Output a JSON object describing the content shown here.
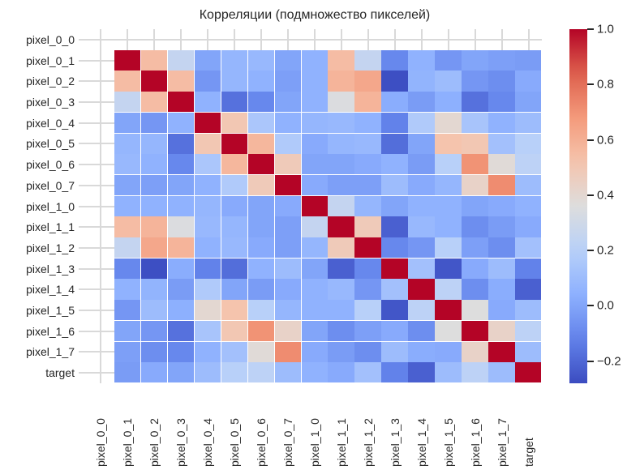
{
  "chart_data": {
    "type": "heatmap",
    "title": "Корреляции (подмножество пикселей)",
    "xlabel": "",
    "ylabel": "",
    "colormap": "coolwarm",
    "vmin": -0.28,
    "vmax": 1.0,
    "labels": [
      "pixel_0_0",
      "pixel_0_1",
      "pixel_0_2",
      "pixel_0_3",
      "pixel_0_4",
      "pixel_0_5",
      "pixel_0_6",
      "pixel_0_7",
      "pixel_1_0",
      "pixel_1_1",
      "pixel_1_2",
      "pixel_1_3",
      "pixel_1_4",
      "pixel_1_5",
      "pixel_1_6",
      "pixel_1_7",
      "target"
    ],
    "matrix": [
      [
        null,
        null,
        null,
        null,
        null,
        null,
        null,
        null,
        null,
        null,
        null,
        null,
        null,
        null,
        null,
        null,
        null
      ],
      [
        null,
        1.0,
        0.55,
        0.25,
        0.0,
        0.07,
        0.08,
        0.0,
        0.05,
        0.55,
        0.25,
        -0.1,
        0.05,
        -0.05,
        0.0,
        -0.02,
        -0.03
      ],
      [
        null,
        0.55,
        1.0,
        0.55,
        -0.05,
        0.07,
        0.05,
        -0.02,
        0.05,
        0.58,
        0.63,
        -0.27,
        0.06,
        0.1,
        -0.05,
        -0.08,
        0.02
      ],
      [
        null,
        0.25,
        0.55,
        1.0,
        0.05,
        -0.17,
        -0.1,
        0.0,
        0.05,
        0.35,
        0.58,
        0.03,
        -0.03,
        0.04,
        -0.17,
        -0.1,
        0.0
      ],
      [
        null,
        0.0,
        -0.05,
        0.05,
        1.0,
        0.5,
        0.15,
        0.05,
        0.07,
        0.08,
        0.05,
        -0.12,
        0.17,
        0.4,
        0.14,
        0.05,
        0.1
      ],
      [
        null,
        0.07,
        0.07,
        -0.17,
        0.5,
        1.0,
        0.57,
        0.17,
        0.02,
        0.07,
        0.08,
        -0.18,
        0.0,
        0.52,
        0.5,
        0.12,
        0.2
      ],
      [
        null,
        0.08,
        0.05,
        -0.1,
        0.15,
        0.57,
        1.0,
        0.48,
        0.0,
        0.0,
        0.02,
        0.05,
        -0.03,
        0.2,
        0.7,
        0.38,
        0.22
      ],
      [
        null,
        0.0,
        -0.02,
        0.0,
        0.05,
        0.17,
        0.48,
        1.0,
        0.02,
        -0.02,
        -0.02,
        0.1,
        0.02,
        0.07,
        0.43,
        0.72,
        0.1
      ],
      [
        null,
        0.05,
        0.05,
        0.05,
        0.07,
        0.02,
        0.0,
        0.02,
        1.0,
        0.25,
        0.07,
        0.0,
        0.05,
        0.05,
        0.0,
        0.02,
        0.05
      ],
      [
        null,
        0.55,
        0.58,
        0.35,
        0.08,
        0.07,
        0.0,
        -0.02,
        0.25,
        1.0,
        0.48,
        -0.22,
        0.08,
        0.05,
        -0.08,
        -0.03,
        0.02
      ],
      [
        null,
        0.25,
        0.63,
        0.58,
        0.05,
        0.08,
        0.02,
        -0.02,
        0.07,
        0.48,
        1.0,
        -0.1,
        -0.05,
        0.2,
        -0.02,
        -0.08,
        0.12
      ],
      [
        null,
        -0.1,
        -0.27,
        0.03,
        -0.12,
        -0.18,
        0.05,
        0.1,
        0.0,
        -0.22,
        -0.1,
        1.0,
        0.12,
        -0.25,
        0.02,
        0.1,
        -0.12
      ],
      [
        null,
        0.05,
        0.06,
        -0.03,
        0.17,
        0.0,
        -0.03,
        0.02,
        0.05,
        0.08,
        -0.05,
        0.12,
        1.0,
        0.22,
        -0.08,
        0.03,
        -0.22
      ],
      [
        null,
        -0.05,
        0.1,
        0.04,
        0.4,
        0.52,
        0.2,
        0.07,
        0.05,
        0.05,
        0.2,
        -0.25,
        0.22,
        1.0,
        0.36,
        0.02,
        0.1
      ],
      [
        null,
        0.0,
        -0.05,
        -0.17,
        0.14,
        0.5,
        0.7,
        0.43,
        0.0,
        -0.08,
        -0.02,
        0.02,
        -0.08,
        0.36,
        1.0,
        0.43,
        0.22
      ],
      [
        null,
        -0.02,
        -0.08,
        -0.1,
        0.05,
        0.12,
        0.38,
        0.72,
        0.02,
        -0.03,
        -0.08,
        0.1,
        0.03,
        0.02,
        0.43,
        1.0,
        0.1
      ],
      [
        null,
        -0.03,
        0.02,
        0.0,
        0.1,
        0.2,
        0.22,
        0.1,
        0.05,
        0.02,
        0.12,
        -0.12,
        -0.22,
        0.1,
        0.22,
        0.1,
        1.0
      ]
    ],
    "colorbar": {
      "ticks": [
        1.0,
        0.8,
        0.6,
        0.4,
        0.2,
        0.0,
        -0.2
      ],
      "tick_labels": [
        "1.0",
        "0.8",
        "0.6",
        "0.4",
        "0.2",
        "0.0",
        "−0.2"
      ]
    },
    "grid": true,
    "legend_position": "right (colorbar)"
  }
}
